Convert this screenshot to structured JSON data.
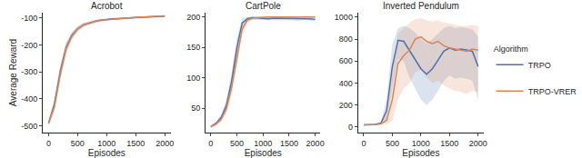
{
  "chart_data": [
    {
      "type": "line",
      "title": "Acrobot",
      "x_label": "Episodes",
      "y_label": "Average Reward",
      "legend": "right",
      "legend_title": "Algorithm",
      "grid": false,
      "x": [
        0,
        100,
        200,
        300,
        400,
        500,
        600,
        700,
        800,
        900,
        1000,
        1100,
        1200,
        1300,
        1400,
        1500,
        1600,
        1700,
        1800,
        1900,
        2000
      ],
      "xlim": [
        -100,
        2100
      ],
      "xticks": [
        0,
        500,
        1000,
        1500,
        2000
      ],
      "ylim": [
        -525,
        -80
      ],
      "yticks": [
        -500,
        -400,
        -300,
        -200,
        -100
      ],
      "series": [
        {
          "name": "TRPO",
          "color": "#4c72b0",
          "values": [
            -490,
            -420,
            -300,
            -210,
            -165,
            -140,
            -125,
            -118,
            -112,
            -108,
            -105,
            -103,
            -102,
            -100,
            -99,
            -98,
            -97,
            -96,
            -95,
            -94,
            -93
          ],
          "lower": [
            -500,
            -440,
            -325,
            -230,
            -178,
            -150,
            -132,
            -124,
            -117,
            -112,
            -109,
            -107,
            -105,
            -103,
            -102,
            -101,
            -100,
            -99,
            -98,
            -97,
            -96
          ],
          "upper": [
            -480,
            -400,
            -275,
            -190,
            -152,
            -130,
            -118,
            -112,
            -107,
            -104,
            -101,
            -99,
            -99,
            -97,
            -96,
            -95,
            -94,
            -93,
            -92,
            -91,
            -90
          ]
        },
        {
          "name": "TRPO-VRER",
          "color": "#dd8452",
          "values": [
            -490,
            -430,
            -310,
            -215,
            -168,
            -140,
            -126,
            -118,
            -112,
            -108,
            -106,
            -104,
            -102,
            -100,
            -99,
            -98,
            -96,
            -95,
            -94,
            -93,
            -92
          ],
          "lower": [
            -500,
            -450,
            -335,
            -235,
            -180,
            -150,
            -133,
            -124,
            -117,
            -112,
            -110,
            -108,
            -105,
            -103,
            -102,
            -101,
            -99,
            -98,
            -97,
            -96,
            -95
          ],
          "upper": [
            -480,
            -410,
            -285,
            -195,
            -155,
            -130,
            -119,
            -112,
            -107,
            -104,
            -102,
            -100,
            -99,
            -97,
            -96,
            -95,
            -93,
            -92,
            -91,
            -90,
            -89
          ]
        }
      ]
    },
    {
      "type": "line",
      "title": "CartPole",
      "x_label": "Episodes",
      "grid": false,
      "x": [
        0,
        100,
        200,
        300,
        400,
        500,
        600,
        700,
        800,
        900,
        1000,
        1100,
        1200,
        1300,
        1400,
        1500,
        1600,
        1700,
        1800,
        1900,
        2000
      ],
      "xlim": [
        -100,
        2100
      ],
      "xticks": [
        0,
        500,
        1000,
        1500,
        2000
      ],
      "ylim": [
        10,
        207
      ],
      "yticks": [
        50,
        100,
        150,
        200
      ],
      "series": [
        {
          "name": "TRPO",
          "color": "#4c72b0",
          "values": [
            20,
            25,
            35,
            55,
            95,
            150,
            190,
            197,
            199,
            198,
            198,
            197,
            198,
            198,
            197,
            198,
            197,
            197,
            198,
            197,
            196
          ],
          "lower": [
            18,
            22,
            30,
            45,
            80,
            135,
            180,
            192,
            196,
            195,
            195,
            194,
            195,
            195,
            194,
            195,
            194,
            194,
            195,
            194,
            193
          ],
          "upper": [
            22,
            28,
            40,
            65,
            110,
            165,
            198,
            200,
            200,
            200,
            200,
            200,
            200,
            200,
            200,
            200,
            200,
            200,
            200,
            200,
            199
          ]
        },
        {
          "name": "TRPO-VRER",
          "color": "#dd8452",
          "values": [
            20,
            24,
            32,
            50,
            85,
            135,
            180,
            195,
            198,
            199,
            200,
            200,
            200,
            200,
            200,
            200,
            200,
            200,
            200,
            200,
            200
          ],
          "lower": [
            18,
            21,
            28,
            42,
            72,
            120,
            170,
            190,
            195,
            197,
            199,
            199,
            199,
            199,
            199,
            199,
            199,
            199,
            199,
            199,
            199
          ],
          "upper": [
            22,
            27,
            37,
            60,
            100,
            150,
            190,
            199,
            200,
            200,
            200,
            200,
            200,
            200,
            200,
            200,
            200,
            200,
            200,
            200,
            200
          ]
        }
      ]
    },
    {
      "type": "line",
      "title": "Inverted Pendulum",
      "x_label": "Episodes",
      "grid": false,
      "x": [
        0,
        100,
        200,
        300,
        400,
        500,
        600,
        700,
        800,
        900,
        1000,
        1100,
        1200,
        1300,
        1400,
        1500,
        1600,
        1700,
        1800,
        1900,
        2000
      ],
      "xlim": [
        -100,
        2100
      ],
      "xticks": [
        0,
        500,
        1000,
        1500,
        2000
      ],
      "ylim": [
        -50,
        1040
      ],
      "yticks": [
        0,
        200,
        400,
        600,
        800,
        1000
      ],
      "series": [
        {
          "name": "TRPO",
          "color": "#4c72b0",
          "values": [
            20,
            20,
            25,
            35,
            150,
            550,
            790,
            780,
            700,
            620,
            530,
            480,
            530,
            610,
            690,
            720,
            700,
            710,
            700,
            690,
            550
          ],
          "lower": [
            15,
            15,
            18,
            25,
            60,
            350,
            620,
            600,
            450,
            350,
            250,
            200,
            250,
            330,
            420,
            470,
            440,
            450,
            440,
            420,
            250
          ],
          "upper": [
            25,
            25,
            32,
            50,
            260,
            750,
            900,
            920,
            900,
            860,
            800,
            760,
            800,
            850,
            900,
            920,
            900,
            910,
            900,
            890,
            820
          ]
        },
        {
          "name": "TRPO-VRER",
          "color": "#dd8452",
          "values": [
            20,
            20,
            22,
            30,
            60,
            250,
            580,
            650,
            700,
            800,
            820,
            780,
            760,
            780,
            740,
            720,
            710,
            700,
            690,
            710,
            700
          ],
          "lower": [
            15,
            15,
            16,
            20,
            25,
            60,
            250,
            350,
            400,
            500,
            520,
            450,
            400,
            420,
            380,
            350,
            330,
            320,
            300,
            330,
            320
          ],
          "upper": [
            25,
            25,
            30,
            45,
            150,
            500,
            850,
            900,
            950,
            980,
            990,
            970,
            960,
            970,
            950,
            940,
            930,
            920,
            920,
            930,
            920
          ]
        }
      ]
    }
  ]
}
